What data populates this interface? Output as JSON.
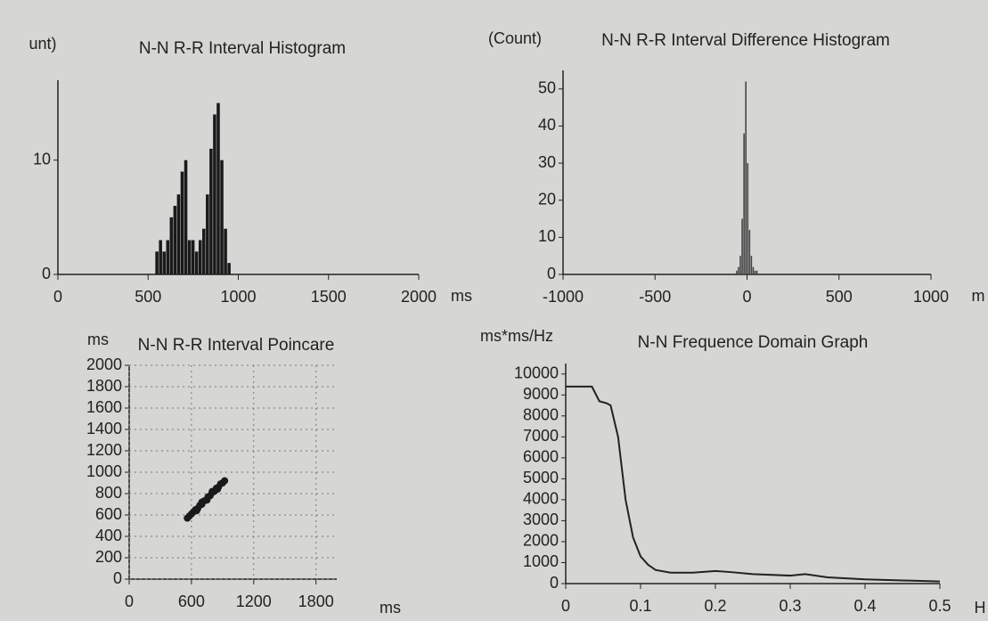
{
  "chart_data": [
    {
      "type": "histogram",
      "title": "N-N R-R Interval Histogram",
      "x_label": "ms",
      "y_label": "unt)",
      "bins": [
        540,
        560,
        580,
        600,
        620,
        640,
        660,
        680,
        700,
        720,
        740,
        760,
        780,
        800,
        820,
        840,
        860,
        880,
        900,
        920,
        940,
        960
      ],
      "counts": [
        2,
        3,
        2,
        3,
        5,
        6,
        7,
        9,
        10,
        3,
        3,
        2,
        3,
        4,
        7,
        11,
        14,
        15,
        10,
        4,
        1
      ],
      "color": "#1a1a1a",
      "xlim": [
        0,
        2000
      ],
      "xticks": [
        0,
        500,
        1000,
        1500,
        2000
      ],
      "ylim": [
        0,
        17
      ],
      "yticks": [
        0,
        10
      ],
      "grid": false
    },
    {
      "type": "histogram",
      "title": "N-N R-R Interval Difference Histogram",
      "x_label": "m",
      "y_label": "(Count)",
      "bins": [
        -60,
        -50,
        -40,
        -30,
        -20,
        -10,
        0,
        10,
        20,
        30,
        40,
        50,
        60
      ],
      "counts": [
        1,
        2,
        5,
        15,
        38,
        52,
        30,
        12,
        5,
        2,
        1,
        1
      ],
      "color": "#444444",
      "xlim": [
        -1000,
        1000
      ],
      "xticks": [
        -1000,
        -500,
        0,
        500,
        1000
      ],
      "ylim": [
        0,
        55
      ],
      "yticks": [
        0,
        10,
        20,
        30,
        40,
        50
      ],
      "grid": false
    },
    {
      "type": "scatter",
      "title": "N-N R-R Interval Poincare",
      "x_label": "ms",
      "y_label": "ms",
      "x": [
        560,
        580,
        600,
        620,
        640,
        660,
        680,
        700,
        720,
        740,
        760,
        780,
        800,
        820,
        840,
        860,
        880,
        900,
        920,
        650,
        700,
        750,
        800,
        850
      ],
      "y": [
        570,
        590,
        610,
        630,
        650,
        660,
        690,
        700,
        730,
        740,
        770,
        780,
        810,
        820,
        850,
        860,
        890,
        900,
        920,
        640,
        720,
        740,
        820,
        840
      ],
      "color": "#1a1a1a",
      "xlim": [
        0,
        2000
      ],
      "xticks": [
        0,
        600,
        1200,
        1800
      ],
      "ylim": [
        0,
        2000
      ],
      "yticks": [
        0,
        200,
        400,
        600,
        800,
        1000,
        1200,
        1400,
        1600,
        1800,
        2000
      ],
      "grid": true
    },
    {
      "type": "line",
      "title": "N-N Frequence Domain Graph",
      "x_label": "H",
      "y_label": "ms*ms/Hz",
      "x": [
        0,
        0.02,
        0.035,
        0.045,
        0.055,
        0.06,
        0.07,
        0.08,
        0.09,
        0.1,
        0.11,
        0.12,
        0.14,
        0.17,
        0.2,
        0.22,
        0.25,
        0.3,
        0.32,
        0.35,
        0.4,
        0.45,
        0.5
      ],
      "values": [
        9400,
        9400,
        9400,
        8700,
        8600,
        8500,
        7000,
        4000,
        2200,
        1300,
        900,
        650,
        520,
        520,
        600,
        550,
        450,
        380,
        450,
        300,
        200,
        150,
        100
      ],
      "color": "#222222",
      "xlim": [
        0,
        0.5
      ],
      "xticks": [
        0,
        0.1,
        0.2,
        0.3,
        0.4,
        0.5
      ],
      "ylim": [
        0,
        10500
      ],
      "yticks": [
        0,
        1000,
        2000,
        3000,
        4000,
        5000,
        6000,
        7000,
        8000,
        9000,
        10000
      ],
      "grid": false
    }
  ]
}
